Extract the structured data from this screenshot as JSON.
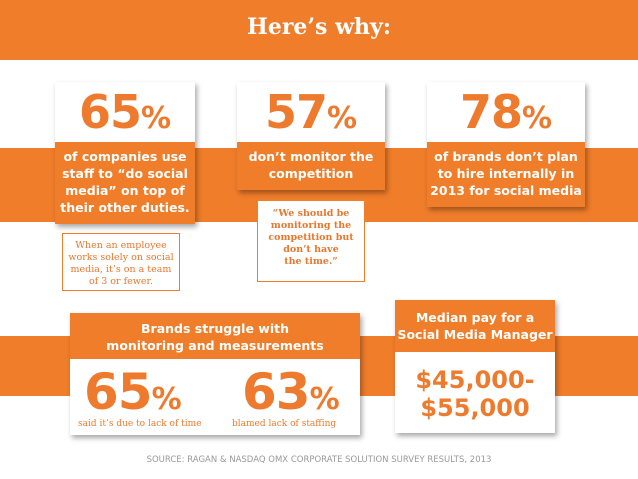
{
  "header": {
    "title": "Here’s why:"
  },
  "stats": [
    {
      "number": "65",
      "unit": "%",
      "text": [
        "of companies use",
        "staff to “do social",
        "media” on top of",
        "their other duties."
      ],
      "note": [
        "When an employee",
        "works solely on social",
        "media, it’s on a team",
        "of 3 or fewer."
      ]
    },
    {
      "number": "57",
      "unit": "%",
      "text": [
        "don’t monitor the",
        "competition"
      ],
      "note": [
        "“We should be",
        "monitoring the",
        "competition but",
        "don’t have",
        "the time.”"
      ]
    },
    {
      "number": "78",
      "unit": "%",
      "text": [
        "of brands don’t plan",
        "to hire internally in",
        "2013 for social media"
      ]
    }
  ],
  "struggle": {
    "title": [
      "Brands struggle with",
      "monitoring and measurements"
    ],
    "items": [
      {
        "number": "65",
        "unit": "%",
        "caption": "said it’s due to lack of time"
      },
      {
        "number": "63",
        "unit": "%",
        "caption": "blamed lack of staffing"
      }
    ]
  },
  "pay": {
    "title": [
      "Median pay for a",
      "Social Media Manager"
    ],
    "value": [
      "$45,000-",
      "$55,000"
    ]
  },
  "source": "SOURCE: RAGAN & NASDAQ OMX CORPORATE SOLUTION SURVEY RESULTS, 2013"
}
